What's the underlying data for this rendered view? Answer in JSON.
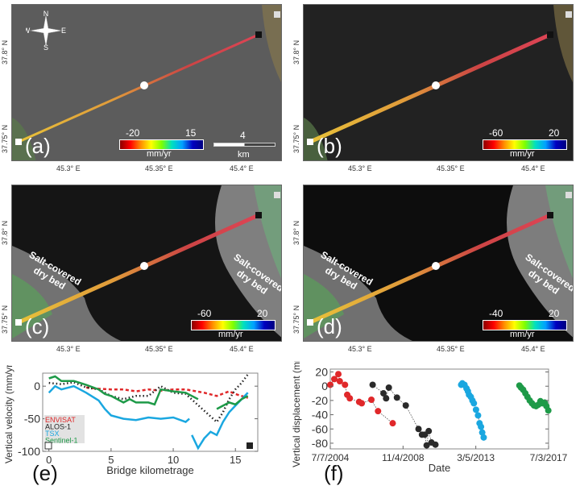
{
  "panels": [
    {
      "id": "a",
      "label": "(a)",
      "cbar_min": "-20",
      "cbar_max": "15",
      "cbar_unit": "mm/yr",
      "scale_value": "4",
      "scale_unit": "km",
      "compass": {
        "n": "N",
        "s": "S",
        "e": "E",
        "w": "W"
      },
      "background": "gray-water",
      "lat_labels": [
        "37.8° N",
        "37.75° N"
      ],
      "lon_labels": [
        "45.3° E",
        "45.35° E",
        "45.4° E"
      ]
    },
    {
      "id": "b",
      "label": "(b)",
      "cbar_min": "-60",
      "cbar_max": "20",
      "cbar_unit": "mm/yr",
      "background": "dark-water",
      "lat_labels": [
        "37.8° N",
        "37.75° N"
      ],
      "lon_labels": [
        "45.3° E",
        "45.35° E",
        "45.4° E"
      ]
    },
    {
      "id": "c",
      "label": "(c)",
      "cbar_min": "-60",
      "cbar_max": "20",
      "cbar_unit": "mm/yr",
      "background": "dry-bed",
      "salt_left": "Salt-covered dry bed",
      "salt_right": "Salt-covered dry bed",
      "lat_labels": [
        "37.8° N",
        "37.75° N"
      ],
      "lon_labels": [
        "45.3° E",
        "45.35° E",
        "45.4° E"
      ]
    },
    {
      "id": "d",
      "label": "(d)",
      "cbar_min": "-40",
      "cbar_max": "20",
      "cbar_unit": "mm/yr",
      "background": "dry-bed-dark",
      "salt_left": "Salt-covered dry bed",
      "salt_right": "Salt-covered dry bed",
      "lat_labels": [
        "37.8° N",
        "37.75° N"
      ],
      "lon_labels": [
        "45.3° E",
        "45.35° E",
        "45.4° E"
      ]
    }
  ],
  "chart_data": [
    {
      "panel": "(e)",
      "type": "line",
      "xlabel": "Bridge kilometrage",
      "ylabel": "Vertical velocity (mm/yr)",
      "xlim": [
        -0.5,
        16.8
      ],
      "ylim": [
        -100,
        20
      ],
      "xticks": [
        0,
        5,
        10,
        15
      ],
      "yticks": [
        0,
        -50,
        -100
      ],
      "legend": "bottom-left",
      "series": [
        {
          "name": "ENVISAT",
          "color": "#e0282a",
          "style": "dashed",
          "x": [
            3,
            4,
            5,
            6,
            7,
            8,
            9,
            10,
            11,
            12.5,
            13.5,
            14.5,
            15,
            16
          ],
          "y": [
            -2,
            -4,
            -5,
            -5,
            -8,
            -5,
            -7,
            -5,
            -5,
            -10,
            -15,
            -8,
            -12,
            -18
          ]
        },
        {
          "name": "ALOS-1",
          "color": "#222222",
          "style": "dotted",
          "x": [
            0,
            1,
            2,
            3,
            4,
            5,
            6,
            7,
            8,
            9,
            10,
            11,
            13.5,
            14,
            14.5,
            15,
            15.5,
            16
          ],
          "y": [
            5,
            3,
            6,
            -2,
            -5,
            -15,
            -20,
            -15,
            -15,
            0,
            -10,
            -12,
            -55,
            -40,
            -20,
            -5,
            5,
            18
          ]
        },
        {
          "name": "TSX",
          "color": "#1aa7e0",
          "style": "solid",
          "x": [
            0,
            0.5,
            1,
            2,
            2.5,
            3,
            4,
            4.5,
            5,
            6,
            7,
            8,
            9,
            10,
            11,
            11.3,
            null,
            11.5,
            12,
            12.5,
            13,
            13.5,
            14,
            14.5,
            15,
            16
          ],
          "y": [
            -10,
            0,
            -5,
            0,
            -5,
            -10,
            -22,
            -35,
            -45,
            -50,
            -52,
            -48,
            -50,
            -48,
            -55,
            -50,
            null,
            -75,
            -95,
            -80,
            -70,
            -75,
            -55,
            -40,
            -30,
            -10
          ]
        },
        {
          "name": "Sentinel-1",
          "color": "#1e9a48",
          "style": "solid",
          "x": [
            0,
            0.5,
            1,
            2,
            2.5,
            3,
            4,
            4.5,
            5,
            6,
            6.5,
            7,
            8,
            8.5,
            9,
            10,
            11,
            11.5,
            12,
            null,
            13.5,
            14,
            14.5,
            15,
            15.5,
            16
          ],
          "y": [
            12,
            15,
            8,
            8,
            5,
            2,
            -5,
            -12,
            -15,
            -25,
            -20,
            -25,
            -25,
            -28,
            -5,
            -8,
            -10,
            -15,
            -20,
            null,
            -35,
            -30,
            -25,
            -28,
            -20,
            -15
          ]
        }
      ]
    },
    {
      "panel": "(f)",
      "type": "scatter",
      "xlabel": "Date",
      "ylabel": "Vertical displacement (mm)",
      "xlim": [
        "2004-07-07",
        "2017-03-07"
      ],
      "ylim": [
        -88,
        24
      ],
      "xticks": [
        "7/7/2004",
        "11/4/2008",
        "3/5/2013",
        "7/3/2017"
      ],
      "yticks": [
        20,
        0,
        -20,
        -40,
        -60,
        -80
      ],
      "series": [
        {
          "color": "#e0282a",
          "x": [
            "2004-07-07",
            "2004-10-01",
            "2004-12-25",
            "2005-01-25",
            "2005-05-15",
            "2005-07-01",
            "2005-08-25",
            "2006-03-10",
            "2006-05-05",
            "2006-11-25",
            "2007-04-15",
            "2008-02-20"
          ],
          "y": [
            2,
            10,
            17,
            7,
            2,
            -12,
            -17,
            -22,
            -24,
            -19,
            -35,
            -52
          ]
        },
        {
          "color": "#2a2a2a",
          "x": [
            "2006-12-22",
            "2007-08-08",
            "2007-10-03",
            "2007-11-30",
            "2008-05-20",
            "2008-11-23",
            "2009-08-20",
            "2009-11-01",
            "2009-12-30",
            "2010-02-08",
            "2010-03-24",
            "2010-05-21",
            "2010-08-13"
          ],
          "y": [
            2,
            -10,
            -17,
            -2,
            -16,
            -27,
            -60,
            -68,
            -68,
            -83,
            -63,
            -79,
            -82
          ]
        },
        {
          "color": "#1aa7e0",
          "x": [
            "2012-02-10",
            "2012-03-05",
            "2012-04-20",
            "2012-06-01",
            "2012-07-01",
            "2012-07-25",
            "2012-09-01",
            "2012-10-05",
            "2012-11-05",
            "2012-12-20",
            "2013-02-01",
            "2013-03-05",
            "2013-04-05",
            "2013-05-01",
            "2013-06-01"
          ],
          "y": [
            2,
            4,
            2,
            -3,
            -7,
            -12,
            -15,
            -20,
            -24,
            -33,
            -41,
            -52,
            -57,
            -65,
            -72
          ]
        },
        {
          "color": "#1e9a48",
          "x": [
            "2015-06-28",
            "2015-08-01",
            "2015-09-15",
            "2015-11-01",
            "2015-12-15",
            "2016-02-01",
            "2016-03-20",
            "2016-05-01",
            "2016-06-15",
            "2016-08-01",
            "2016-09-15",
            "2016-11-01",
            "2016-12-15",
            "2017-01-20",
            "2017-03-01"
          ],
          "y": [
            1,
            -2,
            -5,
            -10,
            -15,
            -20,
            -24,
            -27,
            -28,
            -26,
            -21,
            -24,
            -23,
            -28,
            -34
          ]
        }
      ]
    }
  ]
}
